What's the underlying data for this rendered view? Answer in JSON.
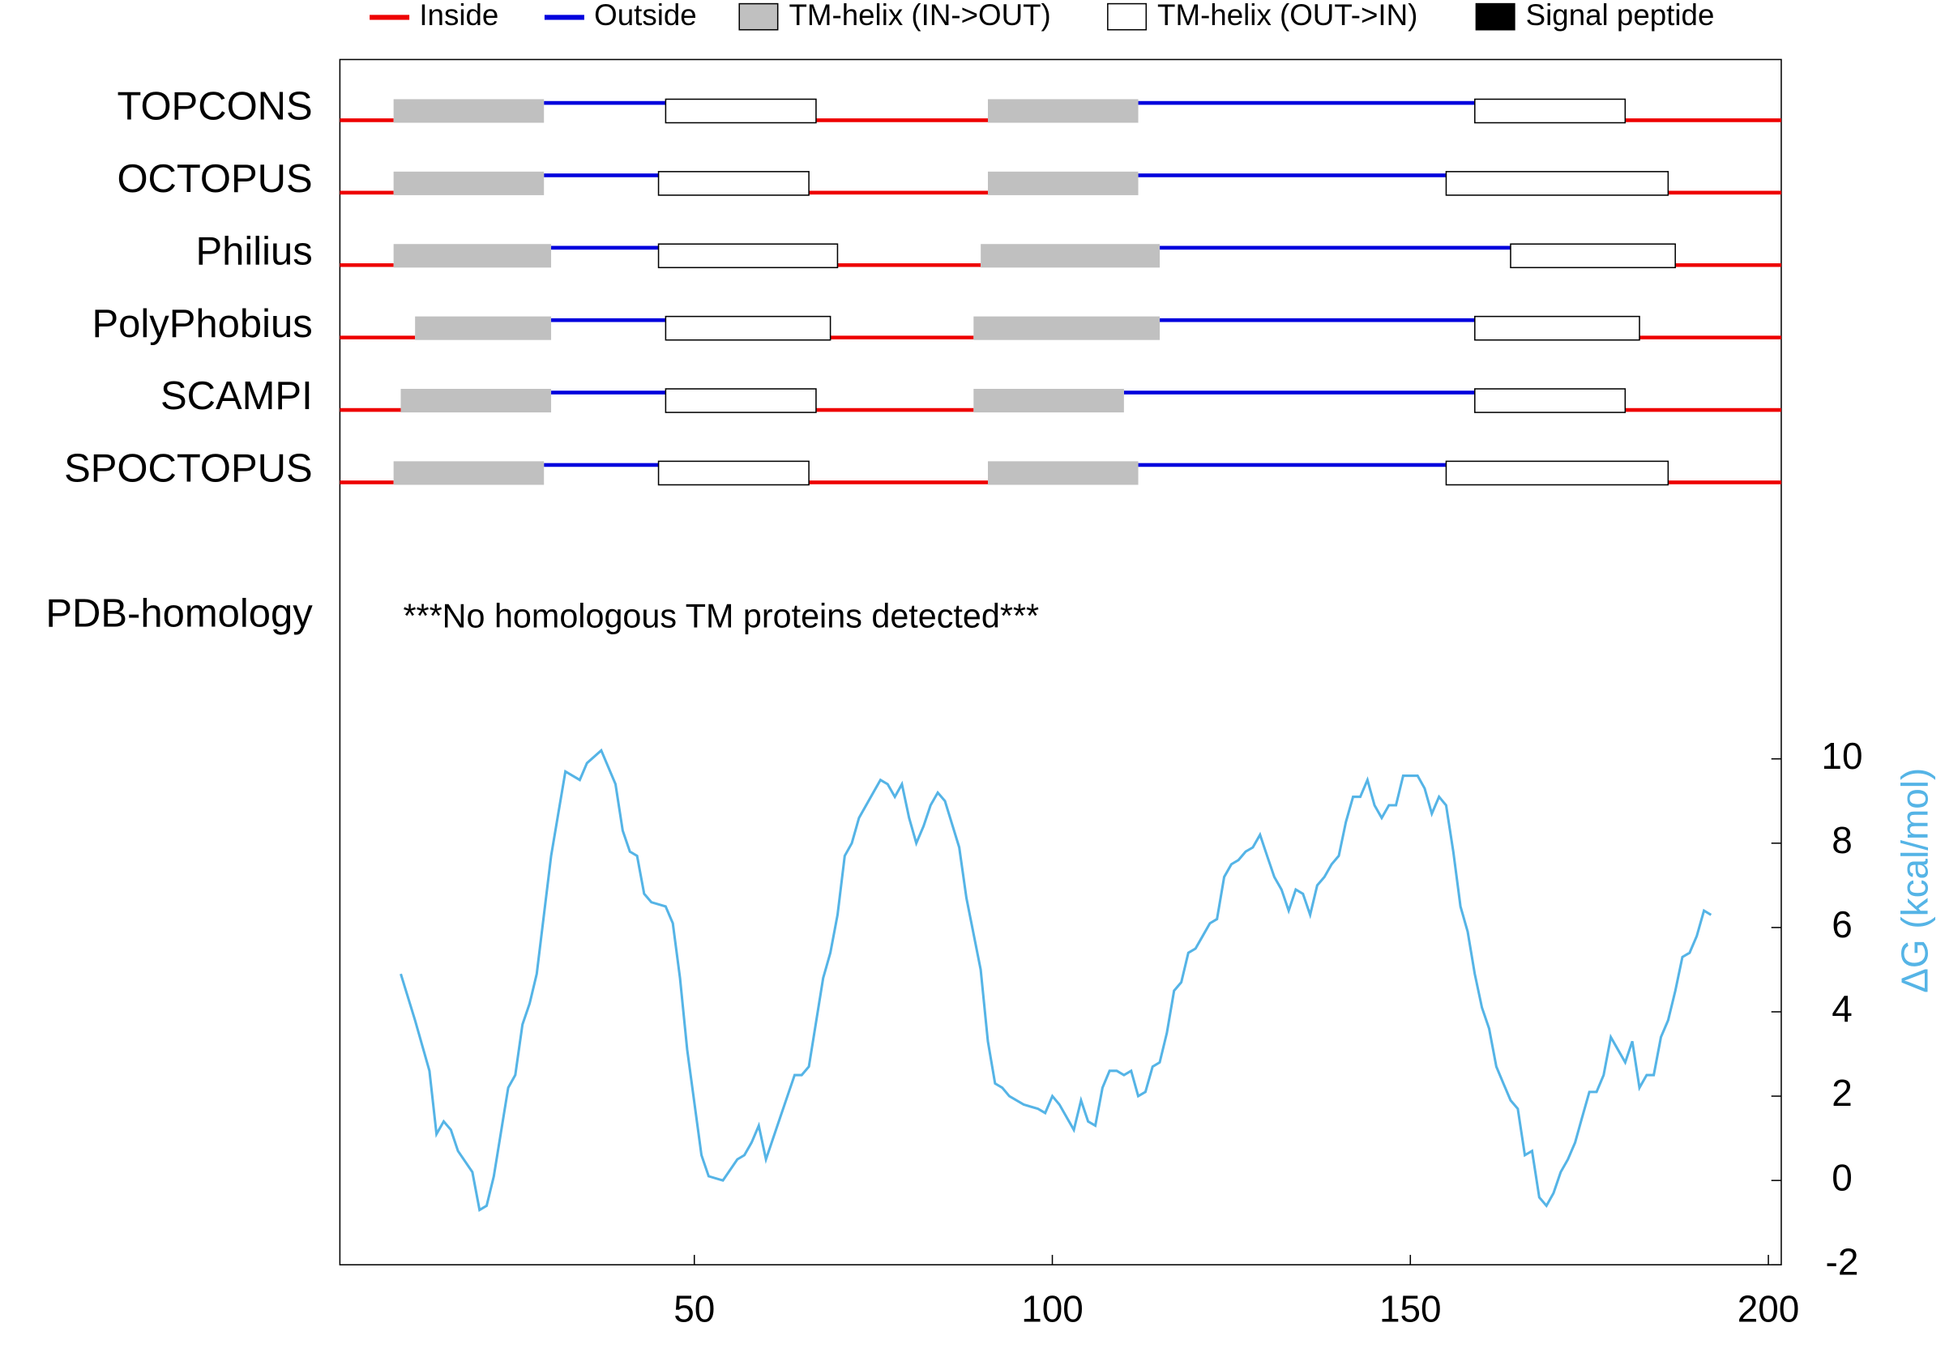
{
  "chart_data": {
    "type": "topology",
    "legend": [
      {
        "name": "Inside",
        "color": "#ee0000"
      },
      {
        "name": "Outside",
        "color": "#0000dd"
      },
      {
        "name": "TM-helix (IN->OUT)",
        "color": "#c0c0c0"
      },
      {
        "name": "TM-helix (OUT->IN)",
        "color": "#ffffff"
      },
      {
        "name": "Signal peptide",
        "color": "#000000"
      }
    ],
    "tracks": [
      {
        "name": "TOPCONS",
        "helices": [
          [
            8,
            29
          ],
          [
            46,
            67
          ],
          [
            91,
            112
          ],
          [
            159,
            180
          ]
        ]
      },
      {
        "name": "OCTOPUS",
        "helices": [
          [
            8,
            29
          ],
          [
            45,
            66
          ],
          [
            91,
            112
          ],
          [
            155,
            186
          ]
        ]
      },
      {
        "name": "Philius",
        "helices": [
          [
            8,
            30
          ],
          [
            45,
            70
          ],
          [
            90,
            115
          ],
          [
            164,
            187
          ]
        ]
      },
      {
        "name": "PolyPhobius",
        "helices": [
          [
            11,
            30
          ],
          [
            46,
            69
          ],
          [
            89,
            115
          ],
          [
            159,
            182
          ]
        ]
      },
      {
        "name": "SCAMPI",
        "helices": [
          [
            9,
            30
          ],
          [
            46,
            67
          ],
          [
            89,
            110
          ],
          [
            159,
            180
          ]
        ]
      },
      {
        "name": "SPOCTOPUS",
        "helices": [
          [
            8,
            29
          ],
          [
            45,
            66
          ],
          [
            91,
            112
          ],
          [
            155,
            186
          ]
        ]
      }
    ],
    "annotation_label": "PDB-homology",
    "annotation": "***No homologous TM proteins detected***",
    "ylabel": "ΔG (kcal/mol)",
    "color": "#55b4e6",
    "x": [
      9,
      11,
      13,
      14,
      15,
      16,
      17,
      19,
      20,
      21,
      22,
      24,
      25,
      26,
      27,
      28,
      30,
      32,
      34,
      35,
      37,
      39,
      40,
      41,
      42,
      43,
      44,
      46,
      47,
      48,
      49,
      51,
      52,
      54,
      56,
      57,
      58,
      59,
      60,
      62,
      63,
      64,
      65,
      66,
      68,
      69,
      70,
      71,
      72,
      73,
      75,
      76,
      77,
      78,
      79,
      80,
      81,
      82,
      83,
      84,
      85,
      87,
      88,
      90,
      91,
      92,
      93,
      94,
      96,
      98,
      99,
      100,
      101,
      102,
      103,
      104,
      105,
      106,
      107,
      108,
      109,
      110,
      111,
      112,
      113,
      114,
      115,
      116,
      117,
      118,
      119,
      120,
      121,
      122,
      123,
      124,
      125,
      126,
      127,
      128,
      129,
      130,
      131,
      132,
      133,
      134,
      135,
      136,
      137,
      138,
      139,
      140,
      141,
      142,
      143,
      144,
      145,
      146,
      147,
      148,
      149,
      150,
      151,
      152,
      153,
      154,
      155,
      156,
      157,
      158,
      159,
      160,
      161,
      162,
      163,
      164,
      165,
      166,
      167,
      168,
      169,
      170,
      171,
      172,
      173,
      174,
      175,
      176,
      177,
      178,
      179,
      180,
      181,
      182,
      183,
      184,
      185,
      186,
      187,
      188,
      189,
      190,
      191,
      192
    ],
    "values": [
      4.9,
      3.8,
      2.6,
      1.1,
      1.4,
      1.2,
      0.7,
      0.2,
      -0.7,
      -0.6,
      0.1,
      2.2,
      2.5,
      3.7,
      4.2,
      4.9,
      7.7,
      9.7,
      9.5,
      9.9,
      10.2,
      9.4,
      8.3,
      7.8,
      7.7,
      6.8,
      6.6,
      6.5,
      6.1,
      4.8,
      3.1,
      0.6,
      0.1,
      0.0,
      0.5,
      0.6,
      0.9,
      1.3,
      0.5,
      1.5,
      2.0,
      2.5,
      2.5,
      2.7,
      4.8,
      5.4,
      6.3,
      7.7,
      8.0,
      8.6,
      9.2,
      9.5,
      9.4,
      9.1,
      9.4,
      8.6,
      8.0,
      8.4,
      8.9,
      9.2,
      9.0,
      7.9,
      6.7,
      5.0,
      3.3,
      2.3,
      2.2,
      2.0,
      1.8,
      1.7,
      1.6,
      2.0,
      1.8,
      1.5,
      1.2,
      1.9,
      1.4,
      1.3,
      2.2,
      2.6,
      2.6,
      2.5,
      2.6,
      2.0,
      2.1,
      2.7,
      2.8,
      3.5,
      4.5,
      4.7,
      5.4,
      5.5,
      5.8,
      6.1,
      6.2,
      7.2,
      7.5,
      7.6,
      7.8,
      7.9,
      8.2,
      7.7,
      7.2,
      6.9,
      6.4,
      6.9,
      6.8,
      6.3,
      7.0,
      7.2,
      7.5,
      7.7,
      8.5,
      9.1,
      9.1,
      9.5,
      8.9,
      8.6,
      8.9,
      8.9,
      9.6,
      9.6,
      9.6,
      9.3,
      8.7,
      9.1,
      8.9,
      7.8,
      6.5,
      5.9,
      4.9,
      4.1,
      3.6,
      2.7,
      2.3,
      1.9,
      1.7,
      0.6,
      0.7,
      -0.4,
      -0.6,
      -0.3,
      0.2,
      0.5,
      0.9,
      1.5,
      2.1,
      2.1,
      2.5,
      3.4,
      3.1,
      2.8,
      3.3,
      2.2,
      2.5,
      2.5,
      3.4,
      3.8,
      4.5,
      5.3,
      5.4,
      5.8,
      6.4,
      6.3
    ],
    "xlim": [
      0.5,
      201.8
    ],
    "xticks": [
      50,
      100,
      150,
      200
    ],
    "ylim": [
      -2,
      10
    ],
    "yticks": [
      -2,
      0,
      2,
      4,
      6,
      8,
      10
    ]
  }
}
